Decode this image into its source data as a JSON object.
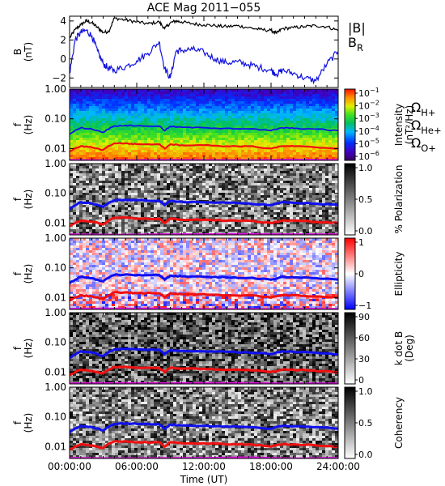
{
  "title": "ACE Mag 2011−055",
  "x_axis": {
    "label": "Time (UT)",
    "ticks": [
      "00:00:00",
      "06:00:00",
      "12:00:00",
      "18:00:00",
      "24:00:00"
    ],
    "range_hours": [
      0,
      24
    ]
  },
  "colors": {
    "B_total": "#000000",
    "B_R": "#1010e0",
    "H_plus": "#1010f0",
    "He_plus": "#f01010",
    "O_plus": "#e010e0"
  },
  "panels": [
    {
      "id": "b-field",
      "ylabel_line1": "B",
      "ylabel_line2": "(nT)",
      "yticks": [
        "4",
        "2",
        "0",
        "−2"
      ],
      "legend": [
        {
          "label": "|B|",
          "color": "#000000"
        },
        {
          "label": "B",
          "sub": "R",
          "color": "#1010e0"
        }
      ]
    },
    {
      "id": "intensity",
      "ylabel_line1": "f",
      "ylabel_line2": "(Hz)",
      "yticks": [
        "1.00",
        "0.10",
        "0.01"
      ],
      "colorbar_type": "rainbow",
      "colorbar_ticks": [
        {
          "base": "10",
          "exp": "−1"
        },
        {
          "base": "10",
          "exp": "−2"
        },
        {
          "base": "10",
          "exp": "−3"
        },
        {
          "base": "10",
          "exp": "−4"
        },
        {
          "base": "10",
          "exp": "−5"
        },
        {
          "base": "10",
          "exp": "−6"
        }
      ],
      "colorbar_label_line1": "Intensity",
      "colorbar_label_line2": "(nT²/Hz)",
      "legend": [
        {
          "label": "Ω",
          "sub": "H+",
          "color": "#1010f0"
        },
        {
          "label": "Ω",
          "sub": "He+",
          "color": "#f01010"
        },
        {
          "label": "Ω",
          "sub": "O+",
          "color": "#e010e0"
        }
      ]
    },
    {
      "id": "polarization",
      "ylabel_line1": "f",
      "ylabel_line2": "(Hz)",
      "yticks": [
        "1.00",
        "0.10",
        "0.01"
      ],
      "colorbar_type": "gray",
      "colorbar_ticks": [
        {
          "base": "1.0"
        },
        {
          "base": "0.5"
        },
        {
          "base": "0.0"
        }
      ],
      "colorbar_label_line1": "% Polarization",
      "colorbar_label_line2": ""
    },
    {
      "id": "ellipticity",
      "ylabel_line1": "f",
      "ylabel_line2": "(Hz)",
      "yticks": [
        "1.00",
        "0.10",
        "0.01"
      ],
      "colorbar_type": "bwr",
      "colorbar_ticks": [
        {
          "base": "1"
        },
        {
          "base": "0"
        },
        {
          "base": "−1"
        }
      ],
      "colorbar_label_line1": "Ellipticity",
      "colorbar_label_line2": ""
    },
    {
      "id": "kdotb",
      "ylabel_line1": "f",
      "ylabel_line2": "(Hz)",
      "yticks": [
        "1.00",
        "0.10",
        "0.01"
      ],
      "colorbar_type": "gray",
      "colorbar_ticks": [
        {
          "base": "90"
        },
        {
          "base": "60"
        },
        {
          "base": "30"
        },
        {
          "base": "0"
        }
      ],
      "colorbar_label_line1": "k dot B",
      "colorbar_label_line2": "(Deg)"
    },
    {
      "id": "coherency",
      "ylabel_line1": "f",
      "ylabel_line2": "(Hz)",
      "yticks": [
        "1.00",
        "0.10",
        "0.01"
      ],
      "colorbar_type": "gray",
      "colorbar_ticks": [
        {
          "base": "1.0"
        },
        {
          "base": "0.5"
        },
        {
          "base": "0.0"
        }
      ],
      "colorbar_label_line1": "Coherency",
      "colorbar_label_line2": ""
    }
  ],
  "chart_data": [
    {
      "type": "line",
      "title": "ACE Mag 2011−055",
      "xlabel": "Time (UT)",
      "ylabel": "B (nT)",
      "xlim": [
        0,
        24
      ],
      "ylim": [
        -3,
        4.5
      ],
      "series": [
        {
          "name": "|B|",
          "x": [
            0,
            0.5,
            1,
            1.5,
            2,
            2.5,
            3,
            3.5,
            4,
            5,
            6,
            7,
            8,
            8.5,
            9,
            9.5,
            10,
            11,
            12,
            13,
            14,
            15,
            16,
            17,
            18,
            18.5,
            19,
            20,
            21,
            22,
            23,
            24
          ],
          "y": [
            2.2,
            3.1,
            3.6,
            4.0,
            3.8,
            3.3,
            2.8,
            2.9,
            4.3,
            4.1,
            3.9,
            3.7,
            3.9,
            3.2,
            3.8,
            4.0,
            3.9,
            3.7,
            3.6,
            3.5,
            3.4,
            3.5,
            3.3,
            3.1,
            3.0,
            2.7,
            3.2,
            3.3,
            3.4,
            3.5,
            3.4,
            3.0
          ]
        },
        {
          "name": "B_R",
          "x": [
            0,
            0.5,
            1,
            1.5,
            2,
            2.5,
            3,
            3.5,
            4,
            5,
            6,
            7,
            8,
            8.5,
            9,
            9.5,
            10,
            11,
            12,
            13,
            14,
            15,
            16,
            17,
            18,
            18.5,
            19,
            20,
            21,
            22,
            23,
            24
          ],
          "y": [
            -1.5,
            2.0,
            2.8,
            3.0,
            2.4,
            0.8,
            -0.5,
            -1.0,
            -1.2,
            -0.8,
            -0.2,
            0.6,
            1.8,
            -1.0,
            -2.0,
            0.8,
            0.9,
            1.0,
            0.7,
            0.0,
            -0.4,
            -0.3,
            -0.6,
            -0.9,
            -1.2,
            -1.6,
            -1.2,
            -1.5,
            -2.0,
            -2.3,
            -0.5,
            0.8
          ]
        }
      ]
    },
    {
      "type": "heatmap",
      "title": "",
      "ylabel": "f (Hz)",
      "xlabel": "",
      "yscale": "log",
      "ylim": [
        0.004,
        1.0
      ],
      "colorbar": "Intensity (nT²/Hz)",
      "crange": [
        1e-06,
        0.1
      ],
      "series": [
        {
          "name": "ΩH+",
          "x": [
            0,
            1,
            2,
            3,
            4,
            5,
            6,
            8,
            8.5,
            9,
            10,
            12,
            14,
            16,
            18,
            19,
            20,
            22,
            24
          ],
          "y": [
            0.03,
            0.05,
            0.045,
            0.035,
            0.058,
            0.06,
            0.058,
            0.057,
            0.04,
            0.055,
            0.052,
            0.05,
            0.048,
            0.046,
            0.04,
            0.05,
            0.048,
            0.045,
            0.04
          ]
        },
        {
          "name": "ΩHe+",
          "x": [
            0,
            1,
            2,
            3,
            4,
            5,
            6,
            8,
            8.5,
            9,
            10,
            12,
            14,
            16,
            18,
            19,
            20,
            22,
            24
          ],
          "y": [
            0.008,
            0.012,
            0.011,
            0.009,
            0.015,
            0.015,
            0.014,
            0.014,
            0.01,
            0.014,
            0.013,
            0.013,
            0.012,
            0.012,
            0.01,
            0.012,
            0.012,
            0.011,
            0.01
          ]
        },
        {
          "name": "ΩO+",
          "x": [
            0,
            24
          ],
          "y": [
            0.0042,
            0.0042
          ]
        }
      ]
    },
    {
      "type": "heatmap",
      "title": "",
      "ylabel": "f (Hz)",
      "xlabel": "",
      "yscale": "log",
      "ylim": [
        0.004,
        1.0
      ],
      "colorbar": "% Polarization",
      "crange": [
        0.0,
        1.0
      ]
    },
    {
      "type": "heatmap",
      "title": "",
      "ylabel": "f (Hz)",
      "xlabel": "",
      "yscale": "log",
      "ylim": [
        0.004,
        1.0
      ],
      "colorbar": "Ellipticity",
      "crange": [
        -1,
        1
      ]
    },
    {
      "type": "heatmap",
      "title": "",
      "ylabel": "f (Hz)",
      "xlabel": "",
      "yscale": "log",
      "ylim": [
        0.004,
        1.0
      ],
      "colorbar": "k dot B (Deg)",
      "crange": [
        0,
        90
      ]
    },
    {
      "type": "heatmap",
      "title": "",
      "ylabel": "f (Hz)",
      "xlabel": "Time (UT)",
      "yscale": "log",
      "ylim": [
        0.004,
        1.0
      ],
      "colorbar": "Coherency",
      "crange": [
        0.0,
        1.0
      ]
    }
  ]
}
